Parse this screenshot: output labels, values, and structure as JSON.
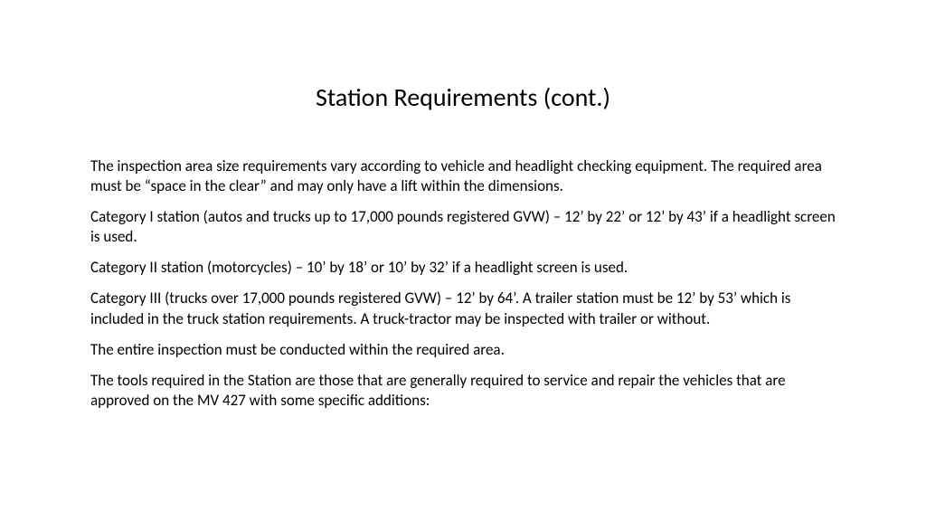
{
  "slide": {
    "title": "Station Requirements (cont.)",
    "paragraphs": [
      "The inspection area size requirements vary according to vehicle and headlight checking equipment. The required area must be “space in the clear” and may only have a lift within the dimensions.",
      "Category I station (autos and trucks up to 17,000 pounds registered GVW) – 12’ by 22’ or 12’ by 43’ if a headlight screen is used.",
      "Category II station (motorcycles) – 10’ by 18’ or 10’ by 32’ if a headlight screen is used.",
      "Category III (trucks over 17,000 pounds registered GVW) – 12’ by 64’. A trailer station must be 12’ by 53’ which is included in the truck station requirements. A truck-tractor may be inspected with trailer or without.",
      "The entire inspection must be conducted within the required area.",
      "The tools required in the Station are those that are generally required to service and repair the vehicles that are approved on the MV 427 with some specific additions:"
    ]
  },
  "style": {
    "background_color": "#ffffff",
    "text_color": "#000000",
    "title_fontsize": 28,
    "body_fontsize": 17,
    "font_family": "Calibri"
  }
}
